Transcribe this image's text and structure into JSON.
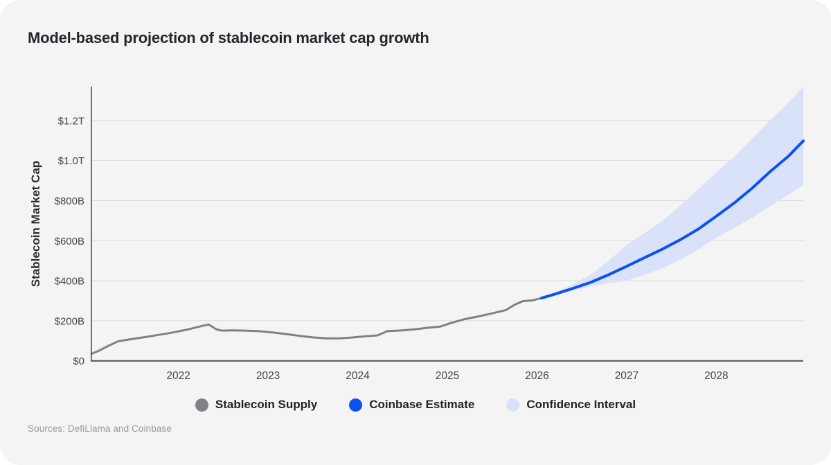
{
  "header": {
    "title": "Model-based projection of stablecoin market cap growth"
  },
  "footer": {
    "sources": "Sources: DefiLlama and Coinbase"
  },
  "legend": {
    "items": [
      {
        "label": "Stablecoin Supply",
        "color": "#808184",
        "marker": "circle-icon"
      },
      {
        "label": "Coinbase Estimate",
        "color": "#0b53f0",
        "marker": "circle-icon"
      },
      {
        "label": "Confidence Interval",
        "color": "#d9e2f8",
        "marker": "circle-icon"
      }
    ]
  },
  "colors": {
    "card_background": "#f4f4f5",
    "grid_line": "#dcdcdd",
    "axis_line": "#4e5054",
    "tick_label": "#45474b",
    "historical_line": "#808184",
    "projection_line": "#0b53f0",
    "confidence_band": "#d9e2f8",
    "title_text": "#24272b",
    "source_text": "#97989b"
  },
  "chart_data": {
    "type": "line",
    "title": "Model-based projection of stablecoin market cap growth",
    "xlabel": "",
    "ylabel": "Stablecoin Market Cap",
    "unit": "USD billions",
    "grid": "horizontal",
    "legend_position": "bottom",
    "x_domain": [
      2021.03,
      2028.97
    ],
    "y_domain": [
      0,
      1369
    ],
    "y_ticks": [
      {
        "value": 0,
        "label": "$0"
      },
      {
        "value": 200,
        "label": "$200B"
      },
      {
        "value": 400,
        "label": "$400B"
      },
      {
        "value": 600,
        "label": "$600B"
      },
      {
        "value": 800,
        "label": "$800B"
      },
      {
        "value": 1000,
        "label": "$1.0T"
      },
      {
        "value": 1200,
        "label": "$1.2T"
      }
    ],
    "x_ticks": [
      {
        "value": 2022,
        "label": "2022"
      },
      {
        "value": 2023,
        "label": "2023"
      },
      {
        "value": 2024,
        "label": "2024"
      },
      {
        "value": 2025,
        "label": "2025"
      },
      {
        "value": 2026,
        "label": "2026"
      },
      {
        "value": 2027,
        "label": "2027"
      },
      {
        "value": 2028,
        "label": "2028"
      }
    ],
    "series": [
      {
        "name": "Stablecoin Supply",
        "type": "line",
        "points": [
          [
            2021.03,
            35
          ],
          [
            2021.12,
            52
          ],
          [
            2021.22,
            75
          ],
          [
            2021.33,
            98
          ],
          [
            2021.5,
            110
          ],
          [
            2021.65,
            120
          ],
          [
            2021.8,
            131
          ],
          [
            2021.92,
            140
          ],
          [
            2022.02,
            149
          ],
          [
            2022.12,
            158
          ],
          [
            2022.2,
            167
          ],
          [
            2022.28,
            176
          ],
          [
            2022.34,
            181
          ],
          [
            2022.42,
            158
          ],
          [
            2022.48,
            151
          ],
          [
            2022.6,
            152
          ],
          [
            2022.75,
            151
          ],
          [
            2022.9,
            148
          ],
          [
            2023.05,
            142
          ],
          [
            2023.2,
            134
          ],
          [
            2023.35,
            125
          ],
          [
            2023.5,
            117
          ],
          [
            2023.65,
            112
          ],
          [
            2023.8,
            112
          ],
          [
            2023.95,
            117
          ],
          [
            2024.1,
            123
          ],
          [
            2024.22,
            127
          ],
          [
            2024.33,
            148
          ],
          [
            2024.5,
            152
          ],
          [
            2024.65,
            158
          ],
          [
            2024.8,
            166
          ],
          [
            2024.92,
            171
          ],
          [
            2025.02,
            186
          ],
          [
            2025.18,
            207
          ],
          [
            2025.35,
            222
          ],
          [
            2025.5,
            237
          ],
          [
            2025.65,
            253
          ],
          [
            2025.75,
            280
          ],
          [
            2025.84,
            298
          ],
          [
            2025.95,
            302
          ],
          [
            2026.05,
            313
          ]
        ]
      },
      {
        "name": "Coinbase Estimate",
        "type": "line",
        "points": [
          [
            2026.05,
            313
          ],
          [
            2026.2,
            333
          ],
          [
            2026.4,
            362
          ],
          [
            2026.6,
            392
          ],
          [
            2026.8,
            430
          ],
          [
            2027.0,
            472
          ],
          [
            2027.2,
            515
          ],
          [
            2027.4,
            558
          ],
          [
            2027.6,
            605
          ],
          [
            2027.8,
            658
          ],
          [
            2028.0,
            722
          ],
          [
            2028.2,
            788
          ],
          [
            2028.4,
            862
          ],
          [
            2028.6,
            945
          ],
          [
            2028.8,
            1020
          ],
          [
            2028.97,
            1098
          ]
        ]
      },
      {
        "name": "Confidence Interval",
        "type": "band",
        "upper": [
          [
            2026.05,
            313
          ],
          [
            2026.2,
            340
          ],
          [
            2026.4,
            382
          ],
          [
            2026.6,
            430
          ],
          [
            2026.8,
            500
          ],
          [
            2027.0,
            578
          ],
          [
            2027.2,
            638
          ],
          [
            2027.4,
            700
          ],
          [
            2027.6,
            775
          ],
          [
            2027.8,
            858
          ],
          [
            2028.0,
            940
          ],
          [
            2028.2,
            1020
          ],
          [
            2028.4,
            1110
          ],
          [
            2028.6,
            1200
          ],
          [
            2028.8,
            1288
          ],
          [
            2028.97,
            1369
          ]
        ],
        "lower": [
          [
            2026.05,
            313
          ],
          [
            2026.2,
            328
          ],
          [
            2026.4,
            350
          ],
          [
            2026.6,
            372
          ],
          [
            2026.8,
            388
          ],
          [
            2027.0,
            400
          ],
          [
            2027.2,
            430
          ],
          [
            2027.4,
            462
          ],
          [
            2027.6,
            505
          ],
          [
            2027.8,
            555
          ],
          [
            2028.0,
            615
          ],
          [
            2028.2,
            662
          ],
          [
            2028.4,
            715
          ],
          [
            2028.6,
            772
          ],
          [
            2028.8,
            828
          ],
          [
            2028.97,
            878
          ]
        ]
      }
    ]
  }
}
